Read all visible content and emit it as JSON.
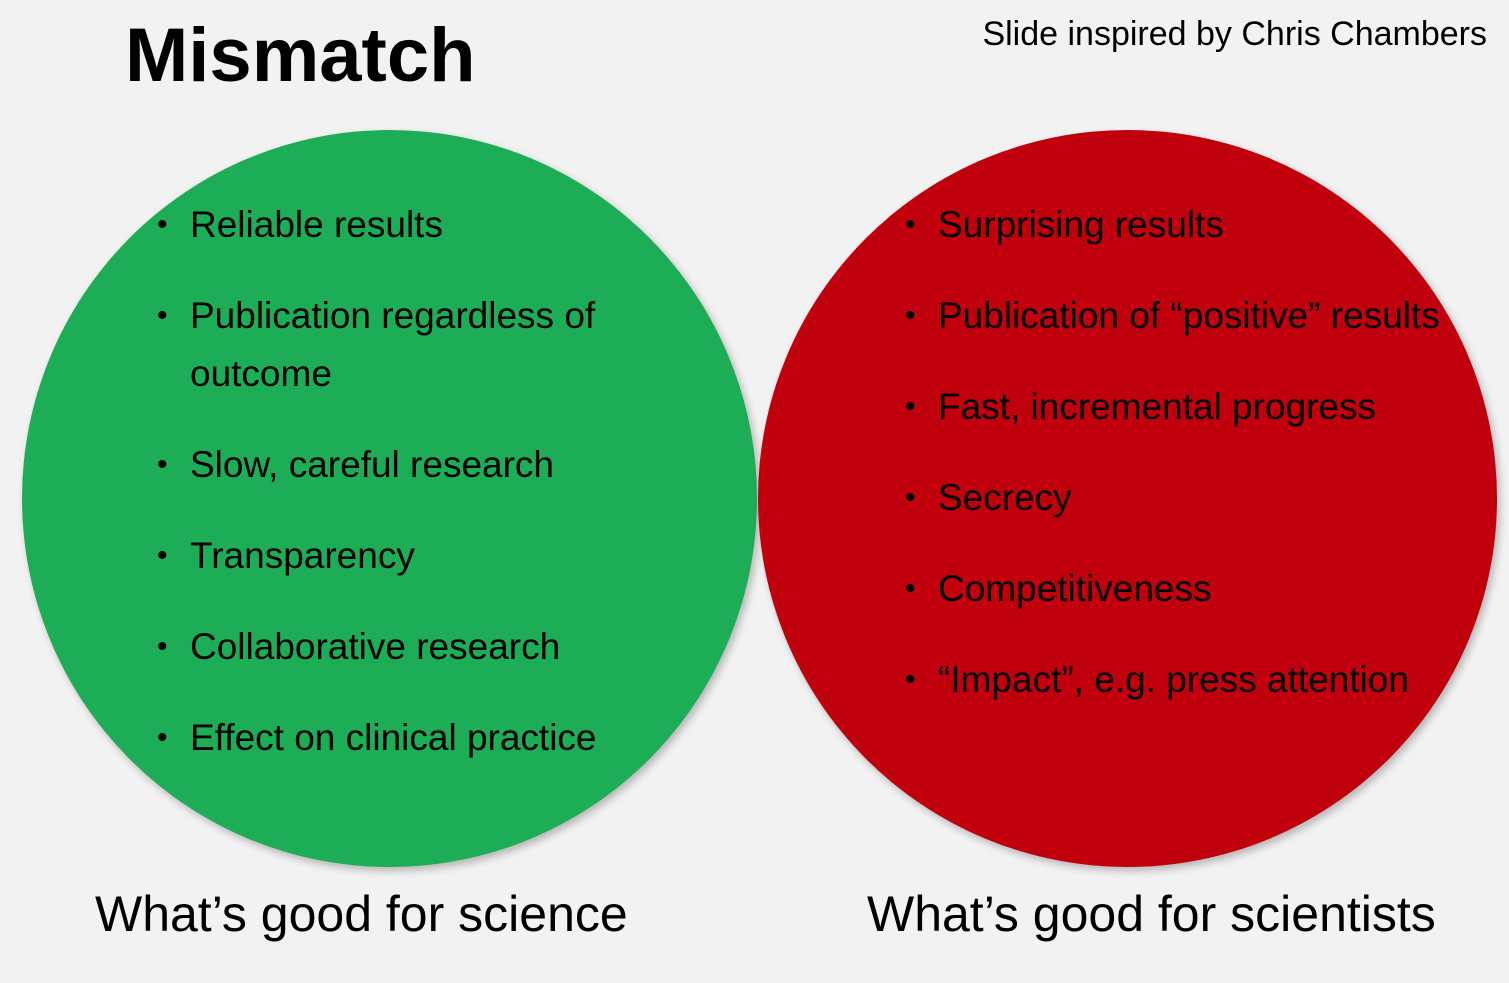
{
  "title": "Mismatch",
  "credit": "Slide inspired by Chris Chambers",
  "colors": {
    "background": "#f2f2f2",
    "good_circle": "#1cad56",
    "bad_circle": "#c0000c"
  },
  "left": {
    "items": [
      "Reliable results",
      "Publication regardless of outcome",
      "Slow, careful research",
      "Transparency",
      "Collaborative research",
      "Effect on clinical practice"
    ],
    "caption": "What’s good for science"
  },
  "right": {
    "items": [
      "Surprising results",
      "Publication of “positive” results",
      "Fast, incremental progress",
      "Secrecy",
      "Competitiveness",
      "“Impact”, e.g. press attention"
    ],
    "caption": "What’s good for scientists"
  }
}
